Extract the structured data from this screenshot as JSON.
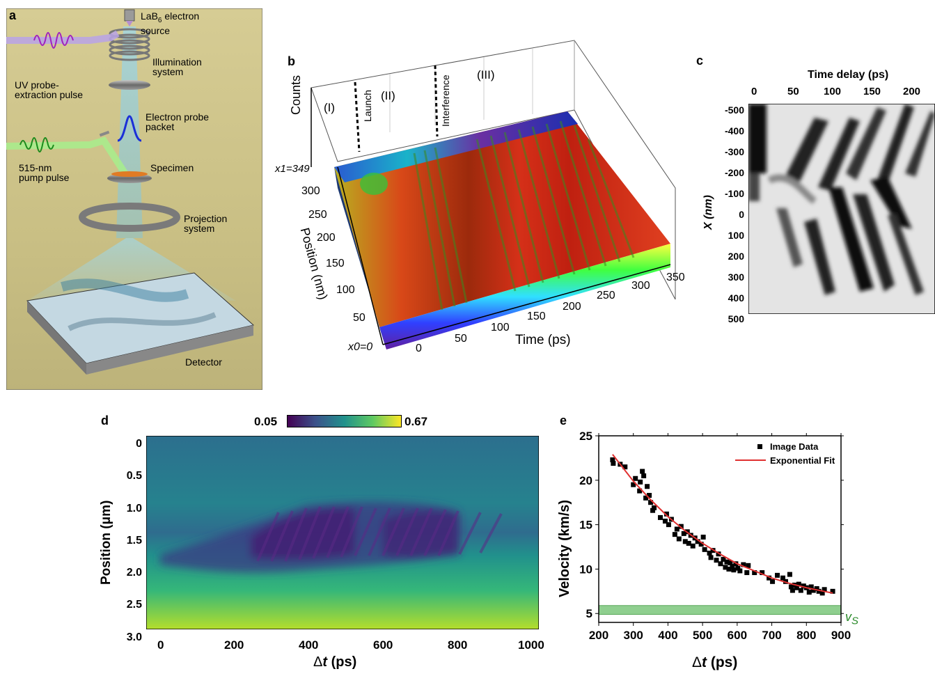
{
  "panels": {
    "a": {
      "letter": "a",
      "labels": {
        "source": "LaB6 electron source",
        "source_line1": "LaB",
        "source_sub": "6",
        "source_line1_rest": " electron",
        "source_line2": "source",
        "illum1": "Illumination",
        "illum2": "system",
        "uv1": "UV probe-",
        "uv2": "extraction pulse",
        "probe1": "Electron probe",
        "probe2": "packet",
        "pump1": "515-nm",
        "pump2": "pump pulse",
        "specimen": "Specimen",
        "proj1": "Projection",
        "proj2": "system",
        "detector": "Detector"
      }
    },
    "b": {
      "letter": "b",
      "zlabel": "Counts",
      "ylabel": "Position (nm)",
      "xlabel": "Time (ps)",
      "y_ticks": [
        "x1=349",
        "300",
        "250",
        "200",
        "150",
        "100",
        "50",
        "x0=0"
      ],
      "x_ticks": [
        "0",
        "50",
        "100",
        "150",
        "200",
        "250",
        "300",
        "350"
      ],
      "regions": [
        "(I)",
        "Launch",
        "(II)",
        "Interference",
        "(III)"
      ]
    },
    "c": {
      "letter": "c",
      "xlabel": "Time delay (ps)",
      "ylabel": "X (nm)",
      "x_ticks": [
        "0",
        "50",
        "100",
        "150",
        "200"
      ],
      "y_ticks": [
        "-500",
        "-400",
        "-300",
        "-200",
        "-100",
        "0",
        "100",
        "200",
        "300",
        "400",
        "500"
      ]
    },
    "d": {
      "letter": "d",
      "colorbar_min": "0.05",
      "colorbar_max": "0.67",
      "ylabel": "Position (μm)",
      "xlabel_symbol": "Δ",
      "xlabel_var": "t",
      "xlabel_unit": " (ps)",
      "x_ticks": [
        "0",
        "200",
        "400",
        "600",
        "800",
        "1000"
      ],
      "y_ticks": [
        "0",
        "0.5",
        "1.0",
        "1.5",
        "2.0",
        "2.5",
        "3.0"
      ]
    },
    "e": {
      "letter": "e",
      "ylabel": "Velocity (km/s)",
      "xlabel_symbol": "Δ",
      "xlabel_var": "t",
      "xlabel_unit": " (ps)",
      "vs_label": "vS",
      "vs_main": "v",
      "vs_sub": "S",
      "legend_data": "Image Data",
      "legend_fit": "Exponential Fit"
    }
  },
  "colors": {
    "fit_line": "#e03030",
    "vs_band": "#8fcf8f",
    "vs_text": "#2a8a2a",
    "viridis_low": "#440154",
    "viridis_high": "#fde725"
  },
  "chart_data": [
    {
      "type": "scatter",
      "panel": "e",
      "title": "",
      "xlabel": "Δt (ps)",
      "ylabel": "Velocity (km/s)",
      "xlim": [
        200,
        900
      ],
      "ylim": [
        4,
        25
      ],
      "x_ticks": [
        200,
        300,
        400,
        500,
        600,
        700,
        800,
        900
      ],
      "y_ticks": [
        5,
        10,
        15,
        20,
        25
      ],
      "legend_position": "top-right",
      "series": [
        {
          "name": "Image Data",
          "marker": "square",
          "points": [
            [
              240,
              22.3
            ],
            [
              242,
              21.9
            ],
            [
              262,
              21.8
            ],
            [
              276,
              21.5
            ],
            [
              300,
              19.5
            ],
            [
              306,
              20.2
            ],
            [
              318,
              18.8
            ],
            [
              320,
              19.8
            ],
            [
              326,
              21.0
            ],
            [
              330,
              20.5
            ],
            [
              336,
              18.0
            ],
            [
              340,
              19.3
            ],
            [
              346,
              18.3
            ],
            [
              350,
              17.5
            ],
            [
              356,
              16.6
            ],
            [
              360,
              16.9
            ],
            [
              378,
              15.8
            ],
            [
              392,
              15.4
            ],
            [
              396,
              16.2
            ],
            [
              402,
              15.0
            ],
            [
              410,
              15.6
            ],
            [
              420,
              13.9
            ],
            [
              426,
              14.5
            ],
            [
              432,
              13.4
            ],
            [
              438,
              14.8
            ],
            [
              446,
              14.0
            ],
            [
              450,
              13.1
            ],
            [
              456,
              14.2
            ],
            [
              460,
              12.9
            ],
            [
              466,
              13.8
            ],
            [
              472,
              12.6
            ],
            [
              478,
              13.5
            ],
            [
              486,
              13.1
            ],
            [
              496,
              12.8
            ],
            [
              502,
              13.6
            ],
            [
              506,
              12.2
            ],
            [
              520,
              11.8
            ],
            [
              524,
              11.3
            ],
            [
              530,
              12.1
            ],
            [
              540,
              11.0
            ],
            [
              546,
              11.7
            ],
            [
              552,
              10.6
            ],
            [
              560,
              11.1
            ],
            [
              566,
              10.2
            ],
            [
              570,
              10.8
            ],
            [
              576,
              10.0
            ],
            [
              580,
              10.7
            ],
            [
              586,
              10.3
            ],
            [
              590,
              9.9
            ],
            [
              596,
              10.6
            ],
            [
              602,
              10.1
            ],
            [
              608,
              9.8
            ],
            [
              618,
              10.5
            ],
            [
              628,
              9.6
            ],
            [
              632,
              10.4
            ],
            [
              650,
              9.6
            ],
            [
              672,
              9.6
            ],
            [
              692,
              9.0
            ],
            [
              702,
              8.6
            ],
            [
              716,
              9.3
            ],
            [
              732,
              9.0
            ],
            [
              740,
              8.6
            ],
            [
              752,
              9.4
            ],
            [
              756,
              8.0
            ],
            [
              760,
              7.6
            ],
            [
              766,
              8.2
            ],
            [
              772,
              7.9
            ],
            [
              778,
              8.3
            ],
            [
              784,
              7.6
            ],
            [
              792,
              8.1
            ],
            [
              800,
              7.9
            ],
            [
              808,
              7.4
            ],
            [
              814,
              8.0
            ],
            [
              820,
              7.6
            ],
            [
              830,
              7.8
            ],
            [
              836,
              7.5
            ],
            [
              846,
              7.3
            ],
            [
              852,
              7.7
            ],
            [
              876,
              7.5
            ]
          ]
        },
        {
          "name": "Exponential Fit",
          "marker": "line",
          "points": [
            [
              240,
              22.9
            ],
            [
              300,
              19.9
            ],
            [
              350,
              17.8
            ],
            [
              400,
              15.9
            ],
            [
              450,
              14.3
            ],
            [
              500,
              12.9
            ],
            [
              550,
              11.7
            ],
            [
              600,
              10.6
            ],
            [
              650,
              9.8
            ],
            [
              700,
              9.0
            ],
            [
              750,
              8.4
            ],
            [
              800,
              7.9
            ],
            [
              850,
              7.5
            ],
            [
              876,
              7.3
            ]
          ]
        }
      ],
      "vs_band": [
        4.9,
        5.9
      ]
    }
  ]
}
